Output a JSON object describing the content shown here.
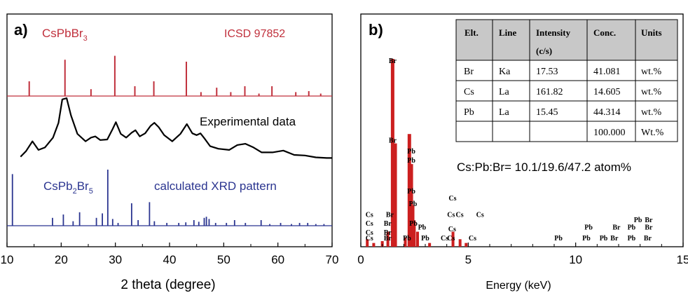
{
  "panel_a": {
    "label": "a)",
    "xlabel": "2 theta (degree)",
    "xlim": [
      10,
      70
    ],
    "xticks": [
      10,
      20,
      30,
      40,
      50,
      60,
      70
    ],
    "ref_color": "#c0303c",
    "ref_name": "CsPbBr",
    "ref_sub": "3",
    "ref_db": "ICSD 97852",
    "exp_label": "Experimental data",
    "calc_color": "#2b3590",
    "calc_name_1": "CsPb",
    "calc_sub_1": "2",
    "calc_name_2": "Br",
    "calc_sub_2": "5",
    "calc_label": "calculated XRD pattern"
  },
  "panel_b": {
    "label": "b)",
    "xlabel": "Energy (keV)",
    "xlim": [
      0,
      15
    ],
    "xticks": [
      0,
      5,
      10,
      15
    ],
    "ratio": "Cs:Pb:Br= 10.1/19.6/47.2 atom%",
    "spectrum_color": "#cc1f1f",
    "table": {
      "headers": [
        "Elt.",
        "Line",
        "Intensity",
        "Conc.",
        "Units"
      ],
      "header_sub": "(c/s)",
      "rows": [
        [
          "Br",
          "Ka",
          "17.53",
          "41.081",
          "wt.%"
        ],
        [
          "Cs",
          "La",
          "161.82",
          "14.605",
          "wt.%"
        ],
        [
          "Pb",
          "La",
          "15.45",
          "44.314",
          "wt.%"
        ],
        [
          "",
          "",
          "",
          "100.000",
          "Wt.%"
        ]
      ]
    }
  },
  "chart_data": [
    {
      "type": "bar",
      "name": "CsPbBr3 reference (ICSD 97852)",
      "xlabel": "2 theta (degree)",
      "xlim": [
        10,
        70
      ],
      "x": [
        14.1,
        20.7,
        25.5,
        29.9,
        33.6,
        37.1,
        43.1,
        45.8,
        48.7,
        51.3,
        53.9,
        56.5,
        58.9,
        63.3,
        65.7,
        67.9
      ],
      "values": [
        0.3,
        0.74,
        0.14,
        0.82,
        0.2,
        0.3,
        0.7,
        0.08,
        0.17,
        0.08,
        0.2,
        0.05,
        0.2,
        0.08,
        0.1,
        0.05
      ]
    },
    {
      "type": "line",
      "name": "Experimental data",
      "xlabel": "2 theta (degree)",
      "xlim": [
        10,
        70
      ],
      "x": [
        12.5,
        13.5,
        14.7,
        15.8,
        17,
        18.5,
        19.5,
        20.2,
        21,
        21.8,
        23,
        24.5,
        25.5,
        26.3,
        27.2,
        28.5,
        29.5,
        30.1,
        31,
        32,
        33,
        33.7,
        34.5,
        35.5,
        36.5,
        37.2,
        38,
        39,
        40.5,
        42,
        43.2,
        44.2,
        45,
        45.7,
        46.5,
        47.5,
        49,
        51,
        52.5,
        54,
        55.5,
        57,
        59,
        61,
        63,
        65,
        67,
        69,
        70
      ],
      "values": [
        0.05,
        0.14,
        0.3,
        0.16,
        0.2,
        0.36,
        0.6,
        0.98,
        1.0,
        0.72,
        0.42,
        0.3,
        0.36,
        0.38,
        0.32,
        0.33,
        0.5,
        0.61,
        0.42,
        0.36,
        0.44,
        0.48,
        0.38,
        0.43,
        0.55,
        0.6,
        0.53,
        0.4,
        0.3,
        0.42,
        0.58,
        0.43,
        0.4,
        0.43,
        0.34,
        0.22,
        0.18,
        0.16,
        0.24,
        0.26,
        0.2,
        0.12,
        0.12,
        0.15,
        0.08,
        0.07,
        0.04,
        0.03,
        0.03
      ]
    },
    {
      "type": "bar",
      "name": "CsPb2Br5 calculated XRD pattern",
      "xlabel": "2 theta (degree)",
      "xlim": [
        10,
        70
      ],
      "x": [
        11.0,
        18.4,
        20.4,
        22.2,
        23.4,
        26.5,
        27.6,
        28.6,
        29.5,
        30.5,
        33.0,
        34.2,
        36.3,
        37.2,
        39.5,
        41.7,
        43.0,
        44.5,
        45.4,
        46.4,
        46.8,
        47.3,
        48.5,
        50.5,
        52.0,
        54.0,
        56.9,
        58.5,
        60.5,
        62.5,
        64.0,
        65.5,
        67.0,
        68.5
      ],
      "values": [
        0.92,
        0.14,
        0.2,
        0.08,
        0.24,
        0.14,
        0.22,
        1.0,
        0.12,
        0.05,
        0.4,
        0.1,
        0.42,
        0.08,
        0.05,
        0.05,
        0.06,
        0.1,
        0.07,
        0.14,
        0.16,
        0.12,
        0.05,
        0.05,
        0.1,
        0.05,
        0.1,
        0.03,
        0.05,
        0.03,
        0.05,
        0.05,
        0.03,
        0.03
      ]
    },
    {
      "type": "bar",
      "name": "EDS spectrum",
      "xlabel": "Energy (keV)",
      "xlim": [
        0,
        15
      ],
      "x": [
        0.3,
        0.6,
        1.0,
        1.26,
        1.48,
        1.6,
        2.07,
        2.26,
        2.35,
        2.43,
        2.49,
        2.64,
        3.2,
        4.29,
        4.62,
        4.9
      ],
      "values": [
        0.04,
        0.02,
        0.03,
        0.08,
        1.0,
        0.55,
        0.05,
        0.6,
        0.44,
        0.22,
        0.14,
        0.08,
        0.02,
        0.08,
        0.04,
        0.02
      ],
      "annotations": [
        {
          "text": "Br",
          "x": 1.48,
          "y": 1.0
        },
        {
          "text": "Br",
          "x": 1.48,
          "y": 0.56
        },
        {
          "text": "Pb",
          "x": 2.35,
          "y": 0.5
        },
        {
          "text": "Pb",
          "x": 2.35,
          "y": 0.45
        },
        {
          "text": "Pb",
          "x": 2.35,
          "y": 0.28
        },
        {
          "text": "Pb",
          "x": 2.43,
          "y": 0.21
        },
        {
          "text": "Pb",
          "x": 2.45,
          "y": 0.1
        },
        {
          "text": "Pb",
          "x": 2.85,
          "y": 0.08
        },
        {
          "text": "Pb",
          "x": 3.0,
          "y": 0.02
        },
        {
          "text": "Pb",
          "x": 2.15,
          "y": 0.02
        },
        {
          "text": "Br",
          "x": 1.35,
          "y": 0.15
        },
        {
          "text": "Br",
          "x": 1.25,
          "y": 0.1
        },
        {
          "text": "Br",
          "x": 1.25,
          "y": 0.05
        },
        {
          "text": "Br",
          "x": 1.25,
          "y": 0.02
        },
        {
          "text": "Cs",
          "x": 0.4,
          "y": 0.15
        },
        {
          "text": "Cs",
          "x": 0.4,
          "y": 0.1
        },
        {
          "text": "Cs",
          "x": 0.4,
          "y": 0.05
        },
        {
          "text": "Cs",
          "x": 0.4,
          "y": 0.02
        },
        {
          "text": "Cs",
          "x": 4.27,
          "y": 0.24
        },
        {
          "text": "Cs",
          "x": 4.6,
          "y": 0.15
        },
        {
          "text": "Cs",
          "x": 5.55,
          "y": 0.15
        },
        {
          "text": "Cs",
          "x": 4.2,
          "y": 0.15
        },
        {
          "text": "Cs",
          "x": 4.25,
          "y": 0.07
        },
        {
          "text": "Cs",
          "x": 4.2,
          "y": 0.02
        },
        {
          "text": "Cs",
          "x": 3.9,
          "y": 0.02
        },
        {
          "text": "Cs",
          "x": 5.2,
          "y": 0.02
        },
        {
          "text": "Pb",
          "x": 9.2,
          "y": 0.02
        },
        {
          "text": "Pb",
          "x": 10.6,
          "y": 0.08
        },
        {
          "text": "Pb",
          "x": 10.5,
          "y": 0.02
        },
        {
          "text": "Pb",
          "x": 11.3,
          "y": 0.02
        },
        {
          "text": "Br",
          "x": 11.9,
          "y": 0.08
        },
        {
          "text": "Br",
          "x": 11.8,
          "y": 0.02
        },
        {
          "text": "Pb",
          "x": 12.6,
          "y": 0.08
        },
        {
          "text": "Pb",
          "x": 12.6,
          "y": 0.02
        },
        {
          "text": "Pb",
          "x": 12.9,
          "y": 0.12
        },
        {
          "text": "Br",
          "x": 13.4,
          "y": 0.12
        },
        {
          "text": "Br",
          "x": 13.4,
          "y": 0.08
        },
        {
          "text": "Br",
          "x": 13.35,
          "y": 0.02
        }
      ]
    }
  ]
}
